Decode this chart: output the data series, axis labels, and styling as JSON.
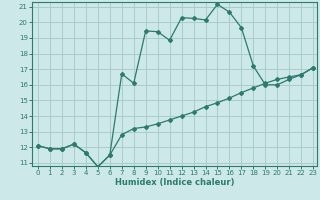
{
  "xlabel": "Humidex (Indice chaleur)",
  "bg_color": "#cce8e8",
  "grid_color": "#aacccc",
  "line_color": "#2d7a6e",
  "xlim": [
    -0.5,
    23.3
  ],
  "ylim": [
    10.8,
    21.3
  ],
  "yticks": [
    11,
    12,
    13,
    14,
    15,
    16,
    17,
    18,
    19,
    20,
    21
  ],
  "xticks": [
    0,
    1,
    2,
    3,
    4,
    5,
    6,
    7,
    8,
    9,
    10,
    11,
    12,
    13,
    14,
    15,
    16,
    17,
    18,
    19,
    20,
    21,
    22,
    23
  ],
  "line1_x": [
    0,
    1,
    2,
    3,
    4,
    5,
    6,
    7,
    8,
    9,
    10,
    11,
    12,
    13,
    14,
    15,
    16,
    17,
    18,
    19,
    20,
    21,
    22,
    23
  ],
  "line1_y": [
    12.1,
    11.9,
    11.9,
    12.2,
    11.65,
    10.75,
    11.5,
    12.8,
    13.2,
    13.3,
    13.5,
    13.75,
    14.0,
    14.25,
    14.6,
    14.85,
    15.15,
    15.5,
    15.8,
    16.1,
    16.35,
    16.5,
    16.65,
    17.1
  ],
  "line2_x": [
    0,
    1,
    2,
    3,
    4,
    5,
    6,
    7,
    8,
    9,
    10,
    11,
    12,
    13,
    14,
    15,
    16,
    17,
    18,
    19,
    20,
    21,
    22,
    23
  ],
  "line2_y": [
    12.1,
    11.9,
    11.9,
    12.2,
    11.65,
    10.75,
    11.5,
    16.7,
    16.1,
    19.45,
    19.4,
    18.85,
    20.3,
    20.25,
    20.15,
    21.15,
    20.65,
    19.65,
    17.2,
    16.0,
    16.0,
    16.35,
    16.65,
    17.1
  ]
}
